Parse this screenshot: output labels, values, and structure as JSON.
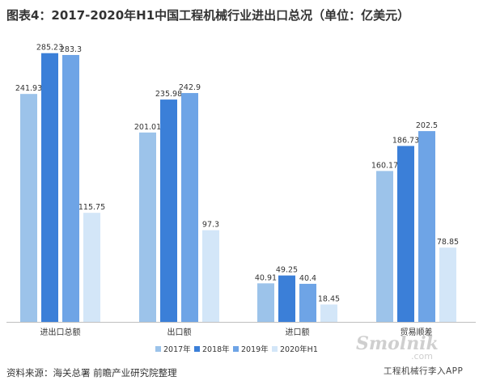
{
  "title": "图表4：2017-2020年H1中国工程机械行业进出口总况（单位：亿美元）",
  "source": "资料来源：海关总署 前瞻产业研究院整理",
  "watermark": {
    "logo_text": "Smolnik",
    "logo_sub": ".com",
    "brand_text": "工程机械行李入APP"
  },
  "colors": {
    "s2017": "#9cc3ea",
    "s2018": "#3b7fd8",
    "s2019": "#6ea4e6",
    "s2020": "#d3e6f8"
  },
  "chart_data": {
    "type": "bar",
    "categories": [
      "进出口总额",
      "出口额",
      "进口额",
      "贸易顺差"
    ],
    "series": [
      {
        "name": "2017年",
        "values": [
          241.93,
          201.01,
          40.91,
          160.17
        ]
      },
      {
        "name": "2018年",
        "values": [
          285.23,
          235.98,
          49.25,
          186.73
        ]
      },
      {
        "name": "2019年",
        "values": [
          283.3,
          242.9,
          40.4,
          202.5
        ]
      },
      {
        "name": "2020年H1",
        "values": [
          115.75,
          97.3,
          18.45,
          78.85
        ]
      }
    ],
    "value_labels": [
      [
        "241.93",
        "201.01",
        "40.91",
        "160.17"
      ],
      [
        "285.23",
        "235.98",
        "49.25",
        "186.73"
      ],
      [
        "283.3",
        "242.9",
        "40.4",
        "202.5"
      ],
      [
        "115.75",
        "97.3",
        "18.45",
        "78.85"
      ]
    ],
    "ylim": [
      0,
      300
    ],
    "legend_position": "bottom",
    "grid": false
  }
}
